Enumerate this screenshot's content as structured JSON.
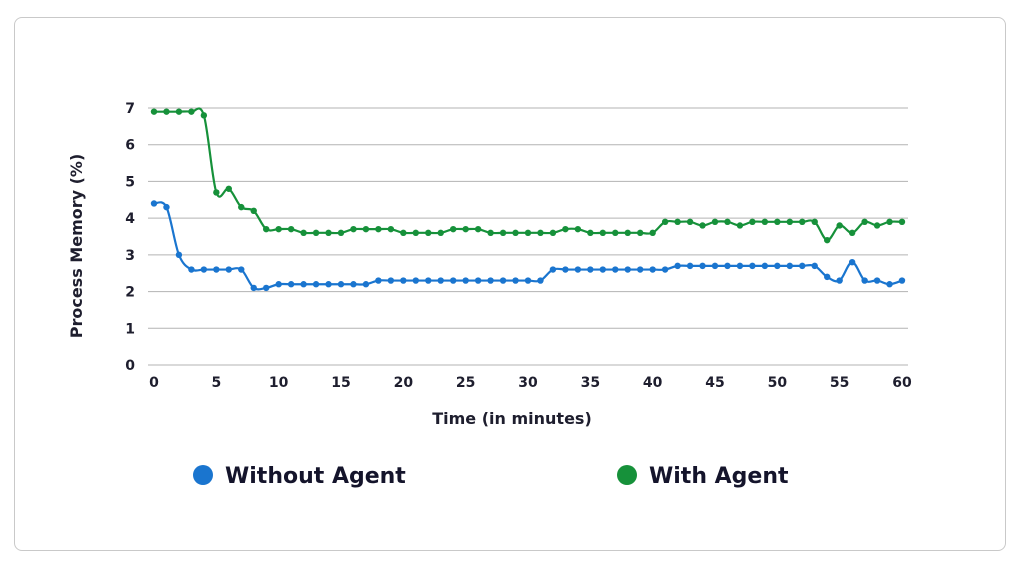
{
  "chart_data": {
    "type": "line",
    "xlabel": "Time (in minutes)",
    "ylabel": "Process Memory (%)",
    "xlim": [
      0,
      60
    ],
    "ylim": [
      0,
      7
    ],
    "x_ticks": [
      0,
      5,
      10,
      15,
      20,
      25,
      30,
      35,
      40,
      45,
      50,
      55,
      60
    ],
    "y_ticks": [
      0,
      1,
      2,
      3,
      4,
      5,
      6,
      7
    ],
    "grid": "horizontal",
    "legend_position": "bottom",
    "x": [
      0,
      1,
      2,
      3,
      4,
      5,
      6,
      7,
      8,
      9,
      10,
      11,
      12,
      13,
      14,
      15,
      16,
      17,
      18,
      19,
      20,
      21,
      22,
      23,
      24,
      25,
      26,
      27,
      28,
      29,
      30,
      31,
      32,
      33,
      34,
      35,
      36,
      37,
      38,
      39,
      40,
      41,
      42,
      43,
      44,
      45,
      46,
      47,
      48,
      49,
      50,
      51,
      52,
      53,
      54,
      55,
      56,
      57,
      58,
      59,
      60
    ],
    "series": [
      {
        "name": "Without Agent",
        "color": "#1a75cf",
        "values": [
          4.4,
          4.3,
          3.0,
          2.6,
          2.6,
          2.6,
          2.6,
          2.6,
          2.1,
          2.1,
          2.2,
          2.2,
          2.2,
          2.2,
          2.2,
          2.2,
          2.2,
          2.2,
          2.3,
          2.3,
          2.3,
          2.3,
          2.3,
          2.3,
          2.3,
          2.3,
          2.3,
          2.3,
          2.3,
          2.3,
          2.3,
          2.3,
          2.6,
          2.6,
          2.6,
          2.6,
          2.6,
          2.6,
          2.6,
          2.6,
          2.6,
          2.6,
          2.7,
          2.7,
          2.7,
          2.7,
          2.7,
          2.7,
          2.7,
          2.7,
          2.7,
          2.7,
          2.7,
          2.7,
          2.4,
          2.3,
          2.8,
          2.3,
          2.3,
          2.2,
          2.3
        ]
      },
      {
        "name": "With Agent",
        "color": "#16913a",
        "values": [
          6.9,
          6.9,
          6.9,
          6.9,
          6.8,
          4.7,
          4.8,
          4.3,
          4.2,
          3.7,
          3.7,
          3.7,
          3.6,
          3.6,
          3.6,
          3.6,
          3.7,
          3.7,
          3.7,
          3.7,
          3.6,
          3.6,
          3.6,
          3.6,
          3.7,
          3.7,
          3.7,
          3.6,
          3.6,
          3.6,
          3.6,
          3.6,
          3.6,
          3.7,
          3.7,
          3.6,
          3.6,
          3.6,
          3.6,
          3.6,
          3.6,
          3.9,
          3.9,
          3.9,
          3.8,
          3.9,
          3.9,
          3.8,
          3.9,
          3.9,
          3.9,
          3.9,
          3.9,
          3.9,
          3.4,
          3.8,
          3.6,
          3.9,
          3.8,
          3.9,
          3.9
        ]
      }
    ]
  }
}
